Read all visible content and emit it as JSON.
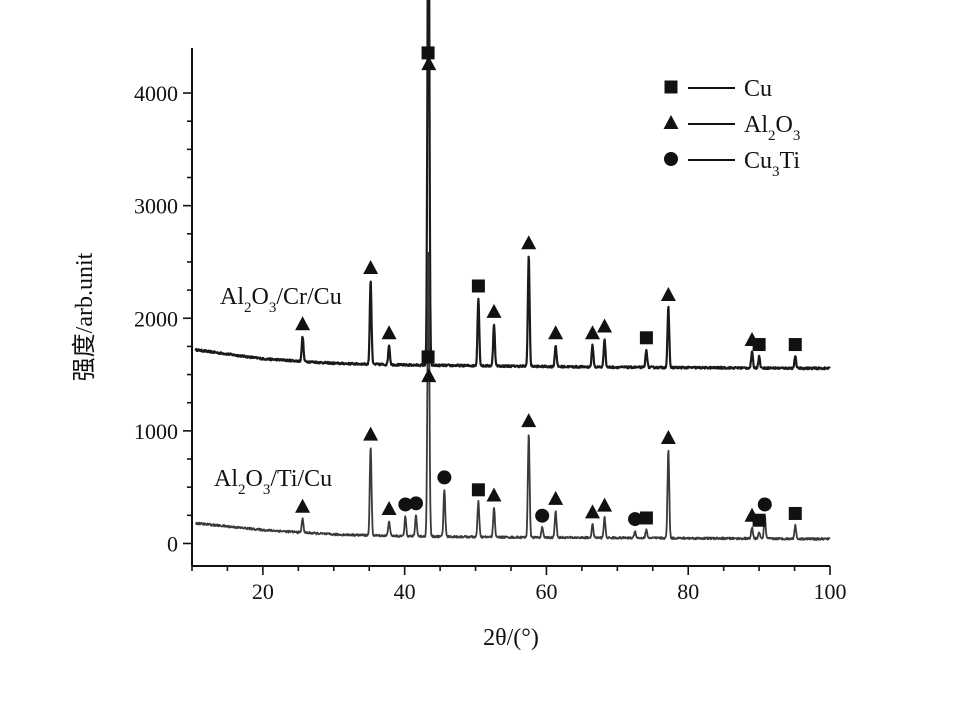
{
  "chart_data": {
    "type": "line",
    "xlabel": "2θ/(°)",
    "ylabel": "强度/arb.unit",
    "xlim": [
      10,
      100
    ],
    "ylim": [
      -200,
      4400
    ],
    "xticks": [
      20,
      40,
      60,
      80,
      100
    ],
    "yticks": [
      0,
      1000,
      2000,
      3000,
      4000
    ],
    "grid": false,
    "legend": {
      "placement": "top-right",
      "entries": [
        {
          "marker": "square",
          "label": "Cu"
        },
        {
          "marker": "triangle",
          "label": "Al2O3"
        },
        {
          "marker": "circle",
          "label": "Cu3Ti"
        }
      ]
    },
    "series": [
      {
        "name": "Al2O3/Cr/Cu",
        "color": "#1a1a1a",
        "baseline": [
          [
            10.5,
            1720
          ],
          [
            20,
            1640
          ],
          [
            30,
            1600
          ],
          [
            40,
            1585
          ],
          [
            55,
            1575
          ],
          [
            70,
            1565
          ],
          [
            85,
            1560
          ],
          [
            100,
            1555
          ]
        ],
        "peaks": [
          {
            "x": 25.6,
            "y": 1840,
            "phase": "Al2O3"
          },
          {
            "x": 35.2,
            "y": 2340,
            "phase": "Al2O3"
          },
          {
            "x": 37.8,
            "y": 1760,
            "phase": "Al2O3"
          },
          {
            "x": 43.3,
            "y": 4250,
            "phase": "Cu"
          },
          {
            "x": 43.4,
            "y": 4150,
            "phase": "Al2O3"
          },
          {
            "x": 50.4,
            "y": 2180,
            "phase": "Cu"
          },
          {
            "x": 52.6,
            "y": 1950,
            "phase": "Al2O3"
          },
          {
            "x": 57.5,
            "y": 2560,
            "phase": "Al2O3"
          },
          {
            "x": 61.3,
            "y": 1760,
            "phase": "Al2O3"
          },
          {
            "x": 66.5,
            "y": 1760,
            "phase": "Al2O3"
          },
          {
            "x": 68.2,
            "y": 1820,
            "phase": "Al2O3"
          },
          {
            "x": 74.1,
            "y": 1720,
            "phase": "Cu"
          },
          {
            "x": 77.2,
            "y": 2100,
            "phase": "Al2O3"
          },
          {
            "x": 89.0,
            "y": 1700,
            "phase": "Al2O3"
          },
          {
            "x": 90.0,
            "y": 1660,
            "phase": "Cu"
          },
          {
            "x": 95.1,
            "y": 1660,
            "phase": "Cu"
          }
        ]
      },
      {
        "name": "Al2O3/Ti/Cu",
        "color": "#3a3a3a",
        "baseline": [
          [
            10.5,
            180
          ],
          [
            20,
            120
          ],
          [
            30,
            80
          ],
          [
            40,
            65
          ],
          [
            55,
            55
          ],
          [
            70,
            50
          ],
          [
            85,
            45
          ],
          [
            100,
            40
          ]
        ],
        "peaks": [
          {
            "x": 25.6,
            "y": 220,
            "phase": "Al2O3"
          },
          {
            "x": 35.2,
            "y": 860,
            "phase": "Al2O3"
          },
          {
            "x": 37.8,
            "y": 200,
            "phase": "Al2O3"
          },
          {
            "x": 40.1,
            "y": 240,
            "phase": "Cu3Ti"
          },
          {
            "x": 41.6,
            "y": 250,
            "phase": "Cu3Ti"
          },
          {
            "x": 43.3,
            "y": 1550,
            "phase": "Cu"
          },
          {
            "x": 43.4,
            "y": 1380,
            "phase": "Al2O3"
          },
          {
            "x": 45.6,
            "y": 480,
            "phase": "Cu3Ti"
          },
          {
            "x": 50.4,
            "y": 370,
            "phase": "Cu"
          },
          {
            "x": 52.6,
            "y": 320,
            "phase": "Al2O3"
          },
          {
            "x": 57.5,
            "y": 980,
            "phase": "Al2O3"
          },
          {
            "x": 59.4,
            "y": 140,
            "phase": "Cu3Ti"
          },
          {
            "x": 61.3,
            "y": 290,
            "phase": "Al2O3"
          },
          {
            "x": 66.5,
            "y": 170,
            "phase": "Al2O3"
          },
          {
            "x": 68.2,
            "y": 230,
            "phase": "Al2O3"
          },
          {
            "x": 72.5,
            "y": 110,
            "phase": "Cu3Ti"
          },
          {
            "x": 74.1,
            "y": 120,
            "phase": "Cu"
          },
          {
            "x": 77.2,
            "y": 830,
            "phase": "Al2O3"
          },
          {
            "x": 89.0,
            "y": 140,
            "phase": "Al2O3"
          },
          {
            "x": 90.0,
            "y": 100,
            "phase": "Cu"
          },
          {
            "x": 90.8,
            "y": 240,
            "phase": "Cu3Ti"
          },
          {
            "x": 95.1,
            "y": 160,
            "phase": "Cu"
          }
        ]
      }
    ]
  }
}
